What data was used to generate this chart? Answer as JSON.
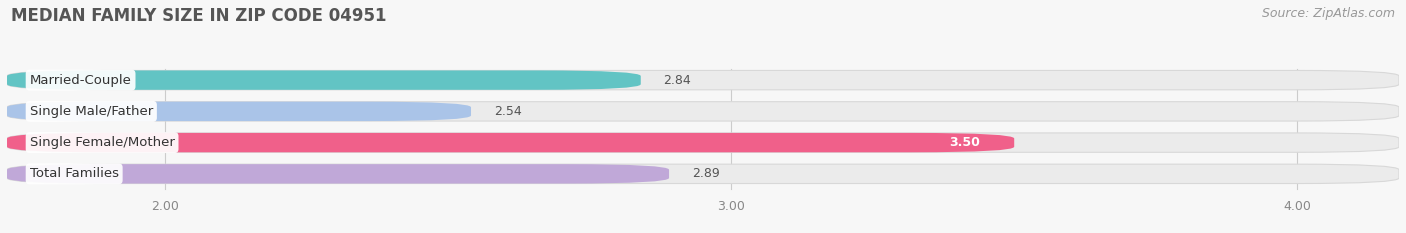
{
  "title": "MEDIAN FAMILY SIZE IN ZIP CODE 04951",
  "source": "Source: ZipAtlas.com",
  "categories": [
    "Married-Couple",
    "Single Male/Father",
    "Single Female/Mother",
    "Total Families"
  ],
  "values": [
    2.84,
    2.54,
    3.5,
    2.89
  ],
  "bar_colors": [
    "#62c4c4",
    "#aac4e8",
    "#f0608a",
    "#c0a8d8"
  ],
  "bar_bg_color": "#ebebeb",
  "xlim_left": 1.72,
  "xlim_right": 4.18,
  "xmin": 1.72,
  "xmax": 4.18,
  "xticks": [
    2.0,
    3.0,
    4.0
  ],
  "xtick_labels": [
    "2.00",
    "3.00",
    "4.00"
  ],
  "background_color": "#f7f7f7",
  "title_fontsize": 12,
  "label_fontsize": 9.5,
  "value_fontsize": 9,
  "source_fontsize": 9
}
